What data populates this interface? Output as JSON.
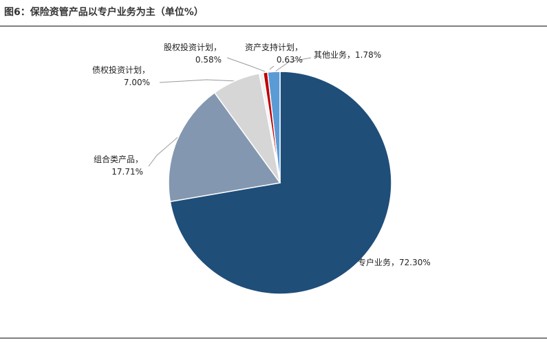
{
  "chart_data": {
    "type": "pie",
    "title": "图6：保险资管产品以专户业务为主（单位%）",
    "values": [
      72.3,
      17.71,
      7.0,
      0.58,
      0.63,
      1.78
    ],
    "value_labels": [
      [
        "专户业务，72.30%"
      ],
      [
        "组合类产品，",
        "17.71%"
      ],
      [
        "债权投资计划，",
        "7.00%"
      ],
      [
        "股权投资计划，",
        "0.58%"
      ],
      [
        "资产支持计划，",
        "0.63%"
      ],
      [
        "其他业务，1.78%"
      ]
    ],
    "colors": [
      "#1f4e79",
      "#8497b0",
      "#d6d6d6",
      "#f2f2f2",
      "#c00000",
      "#5b9bd5"
    ]
  }
}
